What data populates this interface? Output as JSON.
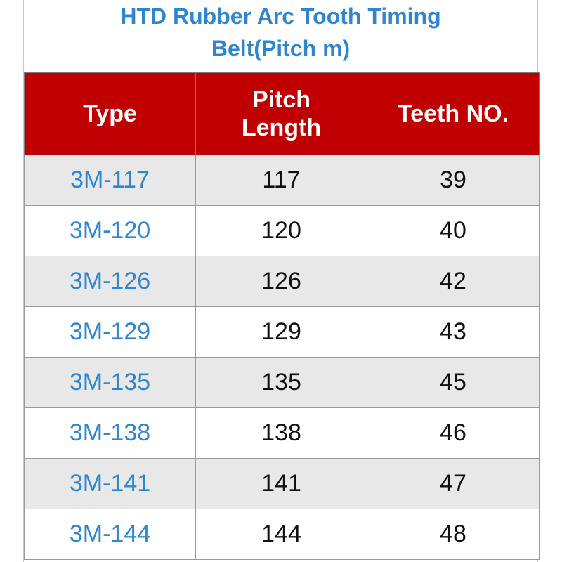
{
  "title": "HTD  Rubber Arc Tooth Timing\nBelt(Pitch m)",
  "table": {
    "headers": [
      "Type",
      "Pitch\nLength",
      "Teeth NO."
    ],
    "rows": [
      {
        "type": "3M-117",
        "pitch_length": "117",
        "teeth": "39"
      },
      {
        "type": "3M-120",
        "pitch_length": "120",
        "teeth": "40"
      },
      {
        "type": "3M-126",
        "pitch_length": "126",
        "teeth": "42"
      },
      {
        "type": "3M-129",
        "pitch_length": "129",
        "teeth": "43"
      },
      {
        "type": "3M-135",
        "pitch_length": "135",
        "teeth": "45"
      },
      {
        "type": "3M-138",
        "pitch_length": "138",
        "teeth": "46"
      },
      {
        "type": "3M-141",
        "pitch_length": "141",
        "teeth": "47"
      },
      {
        "type": "3M-144",
        "pitch_length": "144",
        "teeth": "48"
      }
    ]
  },
  "colors": {
    "header_bg": "#c00000",
    "header_text": "#ffffff",
    "title_text": "#2e86d1",
    "type_text": "#2e86d1",
    "row_stripe": "#e8e8e8"
  }
}
